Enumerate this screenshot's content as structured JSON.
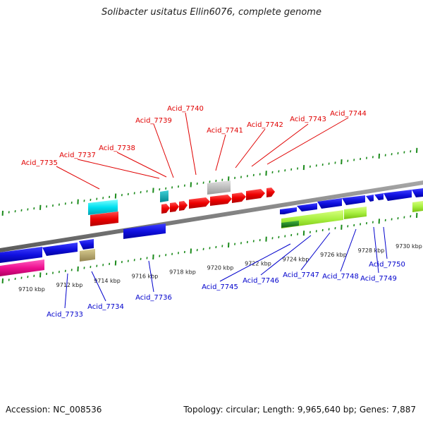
{
  "title": "Solibacter usitatus Ellin6076, complete genome",
  "footer": {
    "accession": "Accession: NC_008536",
    "stats": "Topology: circular; Length: 9,965,640 bp; Genes: 7,887"
  },
  "colors": {
    "top_labels": "#e00000",
    "bottom_labels": "#0000cc",
    "backbone": "#808080",
    "tick": "#1a8a1a"
  },
  "ruler_labels": [
    "9710 kbp",
    "9712 kbp",
    "9714 kbp",
    "9716 kbp",
    "9718 kbp",
    "9720 kbp",
    "9722 kbp",
    "9724 kbp",
    "9726 kbp",
    "9728 kbp",
    "9730 kbp"
  ],
  "top_genes": [
    "Acid_7735",
    "Acid_7737",
    "Acid_7738",
    "Acid_7739",
    "Acid_7740",
    "Acid_7741",
    "Acid_7742",
    "Acid_7743",
    "Acid_7744"
  ],
  "bottom_genes": [
    "Acid_7733",
    "Acid_7734",
    "Acid_7736",
    "Acid_7745",
    "Acid_7746",
    "Acid_7747",
    "Acid_7748",
    "Acid_7749",
    "Acid_7750"
  ]
}
